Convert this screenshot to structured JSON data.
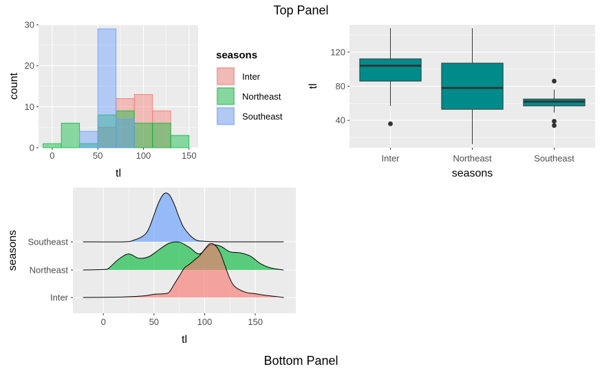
{
  "top_title": "Top Panel",
  "bottom_title": "Bottom Panel",
  "colors": {
    "inter": "#F8766D",
    "northeast": "#00BA38",
    "southeast": "#619CFF",
    "box_fill": "#008B8B",
    "panel_bg": "#EBEBEB",
    "grid": "#FFFFFF"
  },
  "chart_data": [
    {
      "type": "histogram",
      "xlabel": "tl",
      "ylabel": "count",
      "xlim": [
        -15,
        160
      ],
      "ylim": [
        0,
        30
      ],
      "xticks": [
        0,
        50,
        100,
        150
      ],
      "yticks": [
        0,
        10,
        20,
        30
      ],
      "bin_width": 20,
      "bin_starts": [
        -10,
        10,
        30,
        50,
        70,
        90,
        110,
        130
      ],
      "legend": {
        "title": "seasons",
        "position": "right"
      },
      "series": [
        {
          "name": "Inter",
          "color": "#F8766D",
          "values": [
            0,
            0,
            0,
            5,
            12,
            13,
            9,
            0
          ]
        },
        {
          "name": "Northeast",
          "color": "#00BA38",
          "values": [
            1,
            6,
            1,
            8,
            9,
            6,
            6,
            3
          ]
        },
        {
          "name": "Southeast",
          "color": "#619CFF",
          "values": [
            0,
            0,
            4,
            29,
            7,
            0,
            0,
            0
          ]
        }
      ]
    },
    {
      "type": "boxplot",
      "xlabel": "seasons",
      "ylabel": "tl",
      "ylim": [
        8,
        152
      ],
      "yticks": [
        40,
        80,
        120
      ],
      "categories": [
        "Inter",
        "Northeast",
        "Southeast"
      ],
      "boxes": [
        {
          "category": "Inter",
          "lower_whisker": 57,
          "q1": 86,
          "median": 104,
          "q3": 112,
          "upper_whisker": 148,
          "outliers": [
            36
          ]
        },
        {
          "category": "Northeast",
          "lower_whisker": 12,
          "q1": 53,
          "median": 78,
          "q3": 107,
          "upper_whisker": 148,
          "outliers": []
        },
        {
          "category": "Southeast",
          "lower_whisker": 49,
          "q1": 57,
          "median": 62,
          "q3": 65,
          "upper_whisker": 76,
          "outliers": [
            86,
            39,
            34
          ]
        }
      ]
    },
    {
      "type": "area",
      "subtype": "ridgeline-density",
      "xlabel": "tl",
      "ylabel": "seasons",
      "xlim": [
        -30,
        190
      ],
      "xticks": [
        0,
        50,
        100,
        150
      ],
      "categories": [
        "Southeast",
        "Northeast",
        "Inter"
      ],
      "series": [
        {
          "name": "Southeast",
          "color": "#619CFF",
          "fill_range": [
            25,
            100
          ],
          "x": [
            -20,
            20,
            30,
            40,
            45,
            50,
            55,
            60,
            65,
            70,
            75,
            80,
            90,
            100,
            120,
            178
          ],
          "y": [
            0,
            0,
            0.03,
            0.12,
            0.25,
            0.5,
            0.75,
            0.9,
            0.88,
            0.7,
            0.45,
            0.25,
            0.05,
            0.01,
            0,
            0
          ]
        },
        {
          "name": "Northeast",
          "color": "#00BA38",
          "fill_range": [
            0,
            175
          ],
          "x": [
            -20,
            0,
            5,
            15,
            25,
            35,
            45,
            55,
            65,
            75,
            85,
            95,
            105,
            115,
            125,
            135,
            145,
            155,
            165,
            178
          ],
          "y": [
            0,
            0.01,
            0.03,
            0.2,
            0.3,
            0.22,
            0.25,
            0.38,
            0.5,
            0.52,
            0.42,
            0.3,
            0.46,
            0.45,
            0.34,
            0.32,
            0.26,
            0.12,
            0.04,
            0
          ]
        },
        {
          "name": "Inter",
          "color": "#F8766D",
          "fill_range": [
            20,
            178
          ],
          "x": [
            -20,
            20,
            40,
            50,
            60,
            65,
            70,
            75,
            80,
            85,
            90,
            95,
            100,
            105,
            110,
            115,
            120,
            125,
            130,
            140,
            150,
            160,
            170,
            178
          ],
          "y": [
            0,
            0.01,
            0.03,
            0.06,
            0.07,
            0.1,
            0.25,
            0.4,
            0.55,
            0.62,
            0.7,
            0.78,
            0.9,
            1.0,
            0.98,
            0.85,
            0.6,
            0.35,
            0.2,
            0.1,
            0.07,
            0.04,
            0.02,
            0
          ]
        }
      ]
    }
  ]
}
